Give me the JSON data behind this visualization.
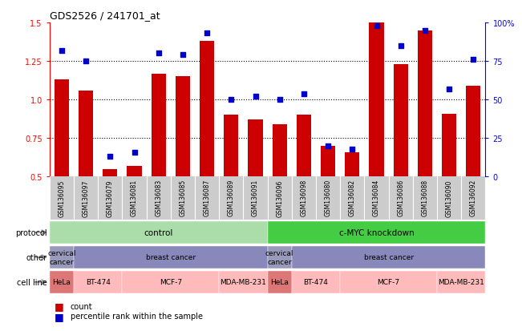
{
  "title": "GDS2526 / 241701_at",
  "samples": [
    "GSM136095",
    "GSM136097",
    "GSM136079",
    "GSM136081",
    "GSM136083",
    "GSM136085",
    "GSM136087",
    "GSM136089",
    "GSM136091",
    "GSM136096",
    "GSM136098",
    "GSM136080",
    "GSM136082",
    "GSM136084",
    "GSM136086",
    "GSM136088",
    "GSM136090",
    "GSM136092"
  ],
  "counts": [
    1.13,
    1.06,
    0.55,
    0.57,
    1.17,
    1.15,
    1.38,
    0.9,
    0.87,
    0.84,
    0.9,
    0.7,
    0.66,
    1.5,
    1.23,
    1.45,
    0.91,
    1.09
  ],
  "percentiles": [
    82,
    75,
    13,
    16,
    80,
    79,
    93,
    50,
    52,
    50,
    54,
    20,
    18,
    98,
    85,
    95,
    57,
    76
  ],
  "ylim_left": [
    0.5,
    1.5
  ],
  "ylim_right": [
    0,
    100
  ],
  "yticks_left": [
    0.5,
    0.75,
    1.0,
    1.25,
    1.5
  ],
  "yticks_right": [
    0,
    25,
    50,
    75,
    100
  ],
  "bar_color": "#cc0000",
  "dot_color": "#0000cc",
  "protocol_control_color": "#aaddaa",
  "protocol_knockdown_color": "#44cc44",
  "other_cervical_color": "#9999bb",
  "other_breast_color": "#7777aa",
  "cell_hela_color": "#dd7777",
  "cell_other_color": "#ffbbbb",
  "other_row": [
    {
      "start": 0,
      "end": 0,
      "label": "cervical\ncancer",
      "color": "#9999bb"
    },
    {
      "start": 1,
      "end": 8,
      "label": "breast cancer",
      "color": "#8888bb"
    },
    {
      "start": 9,
      "end": 9,
      "label": "cervical\ncancer",
      "color": "#9999bb"
    },
    {
      "start": 10,
      "end": 17,
      "label": "breast cancer",
      "color": "#8888bb"
    }
  ],
  "cell_row": [
    {
      "start": 0,
      "end": 0,
      "label": "HeLa",
      "color": "#dd7777"
    },
    {
      "start": 1,
      "end": 2,
      "label": "BT-474",
      "color": "#ffbbbb"
    },
    {
      "start": 3,
      "end": 6,
      "label": "MCF-7",
      "color": "#ffbbbb"
    },
    {
      "start": 7,
      "end": 8,
      "label": "MDA-MB-231",
      "color": "#ffbbbb"
    },
    {
      "start": 9,
      "end": 9,
      "label": "HeLa",
      "color": "#dd7777"
    },
    {
      "start": 10,
      "end": 11,
      "label": "BT-474",
      "color": "#ffbbbb"
    },
    {
      "start": 12,
      "end": 15,
      "label": "MCF-7",
      "color": "#ffbbbb"
    },
    {
      "start": 16,
      "end": 17,
      "label": "MDA-MB-231",
      "color": "#ffbbbb"
    }
  ],
  "grid_yticks": [
    0.75,
    1.0,
    1.25
  ],
  "xtick_bg": "#cccccc"
}
